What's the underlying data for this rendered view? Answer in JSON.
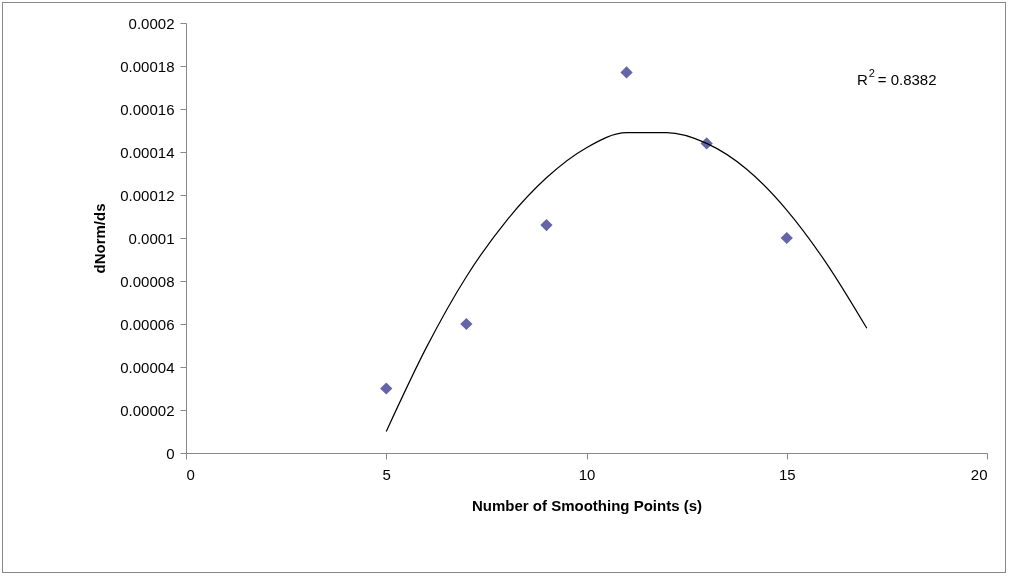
{
  "chart_data": {
    "type": "scatter",
    "xlabel": "Number of Smoothing Points (s)",
    "ylabel": "dNorm/ds",
    "xlim": [
      0,
      20
    ],
    "xticks": [
      0,
      5,
      10,
      15,
      20
    ],
    "ylim": [
      0,
      0.0002
    ],
    "yticks": [
      0,
      {
        "value": 2e-05,
        "label": "0.00002"
      },
      {
        "value": 4e-05,
        "label": "0.00004"
      },
      {
        "value": 6e-05,
        "label": "0.00006"
      },
      {
        "value": 8e-05,
        "label": "0.00008"
      },
      0.0001,
      0.00012,
      0.00014,
      0.00016,
      0.00018,
      0.0002
    ],
    "grid": false,
    "annotations": [
      "R$^{2}$ = 0.8382"
    ],
    "series": [
      {
        "color": "#6464a8",
        "marker": "diamond",
        "x": [
          5,
          7,
          9,
          11,
          13,
          15
        ],
        "values": [
          3e-05,
          6e-05,
          0.000106,
          0.000177,
          0.000144,
          0.0001
        ]
      },
      {
        "type": "line",
        "color": "#000000",
        "x": [
          5,
          6,
          7,
          8,
          9,
          10,
          11,
          12,
          13,
          14,
          15,
          16,
          17
        ],
        "values": [
          1e-05,
          4.9e-05,
          8.2e-05,
          0.000108,
          0.000128,
          0.000142,
          0.000149,
          0.000149,
          0.000144,
          0.000132,
          0.000113,
          8.8e-05,
          5.8e-05
        ]
      }
    ]
  }
}
